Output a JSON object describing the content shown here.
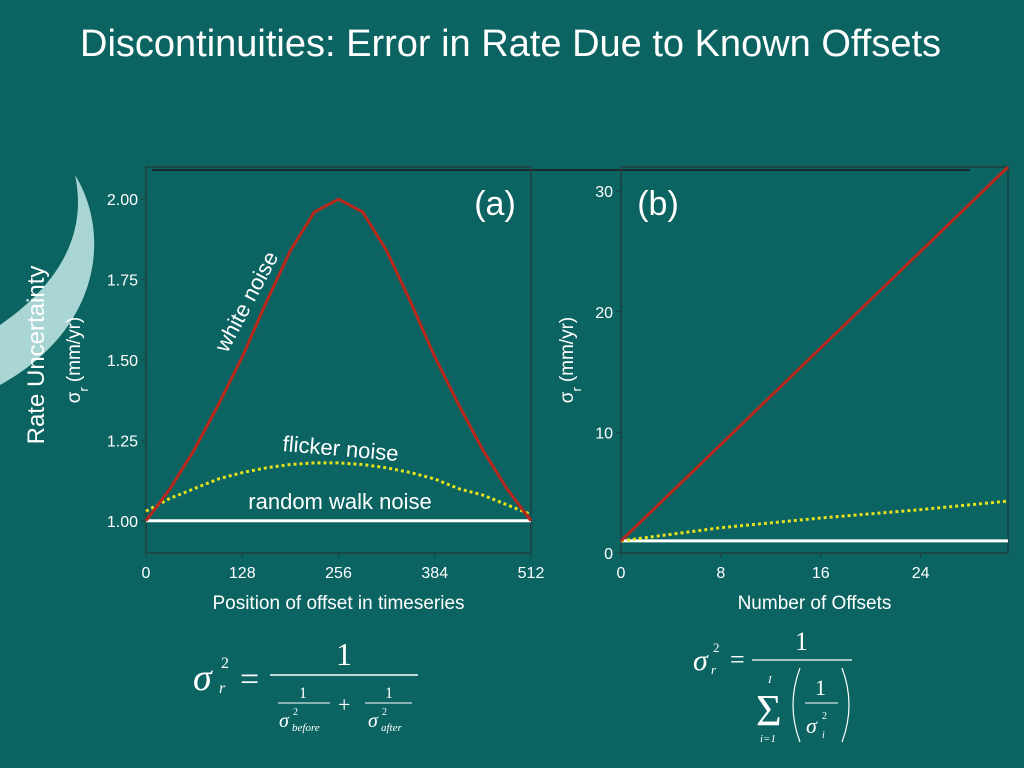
{
  "title": "Discontinuities: Error in Rate Due to Known Offsets",
  "side_label": "Rate Uncertainty",
  "chart_data": [
    {
      "type": "line",
      "panel_label": "(a)",
      "x_label": "Position of offset in timeseries",
      "y_label": {
        "symbol": "σ",
        "subscript": "r",
        "unit": "(mm/yr)"
      },
      "x": [
        0,
        32,
        64,
        96,
        128,
        160,
        192,
        224,
        256,
        288,
        320,
        352,
        384,
        416,
        448,
        480,
        512
      ],
      "xlim": [
        0,
        512
      ],
      "xticks": [
        0,
        128,
        256,
        384,
        512
      ],
      "ylim": [
        0.9,
        2.1
      ],
      "yticks": [
        {
          "value": 1,
          "label": "1.00"
        },
        {
          "value": 1.25,
          "label": "1.25"
        },
        {
          "value": 1.5,
          "label": "1.50"
        },
        {
          "value": 1.75,
          "label": "1.75"
        },
        {
          "value": 2,
          "label": "2.00"
        }
      ],
      "series": [
        {
          "name": "white noise",
          "color": "#b8281c",
          "style": "solid",
          "values": [
            1.0,
            1.1,
            1.22,
            1.36,
            1.51,
            1.68,
            1.84,
            1.96,
            2.0,
            1.96,
            1.84,
            1.68,
            1.51,
            1.36,
            1.22,
            1.1,
            1.0
          ]
        },
        {
          "name": "flicker noise",
          "color": "#e6e21a",
          "style": "dotted",
          "values": [
            1.03,
            1.07,
            1.1,
            1.13,
            1.15,
            1.165,
            1.175,
            1.18,
            1.18,
            1.175,
            1.165,
            1.15,
            1.13,
            1.1,
            1.08,
            1.05,
            1.02
          ]
        },
        {
          "name": "random walk noise",
          "color": "#ffffff",
          "style": "solid",
          "values": [
            1,
            1,
            1,
            1,
            1,
            1,
            1,
            1,
            1,
            1,
            1,
            1,
            1,
            1,
            1,
            1,
            1
          ]
        }
      ]
    },
    {
      "type": "line",
      "panel_label": "(b)",
      "x_label": "Number of Offsets",
      "y_label": {
        "symbol": "σ",
        "subscript": "r",
        "unit": "(mm/yr)"
      },
      "x": [
        0,
        8,
        16,
        24,
        31
      ],
      "xlim": [
        0,
        31
      ],
      "xticks": [
        0,
        8,
        16,
        24
      ],
      "ylim": [
        0,
        32
      ],
      "yticks": [
        0,
        10,
        20,
        30
      ],
      "series": [
        {
          "color": "#b8281c",
          "style": "solid",
          "values": [
            1,
            9,
            17,
            25,
            32
          ]
        },
        {
          "color": "#e6e21a",
          "style": "dotted",
          "values": [
            1,
            2.1,
            2.9,
            3.6,
            4.3
          ]
        },
        {
          "color": "#ffffff",
          "style": "solid",
          "values": [
            1,
            1,
            1,
            1,
            1
          ]
        }
      ]
    }
  ],
  "formula_a": [
    "σ",
    "2",
    "r",
    "=",
    "1",
    "1",
    "σ",
    "2",
    "before",
    "+",
    "1",
    "σ",
    "2",
    "after"
  ],
  "formula_b": [
    "σ",
    "2",
    "r",
    "=",
    "1",
    "I",
    "Σ",
    "i=1",
    "1",
    "σ",
    "2",
    "i"
  ]
}
